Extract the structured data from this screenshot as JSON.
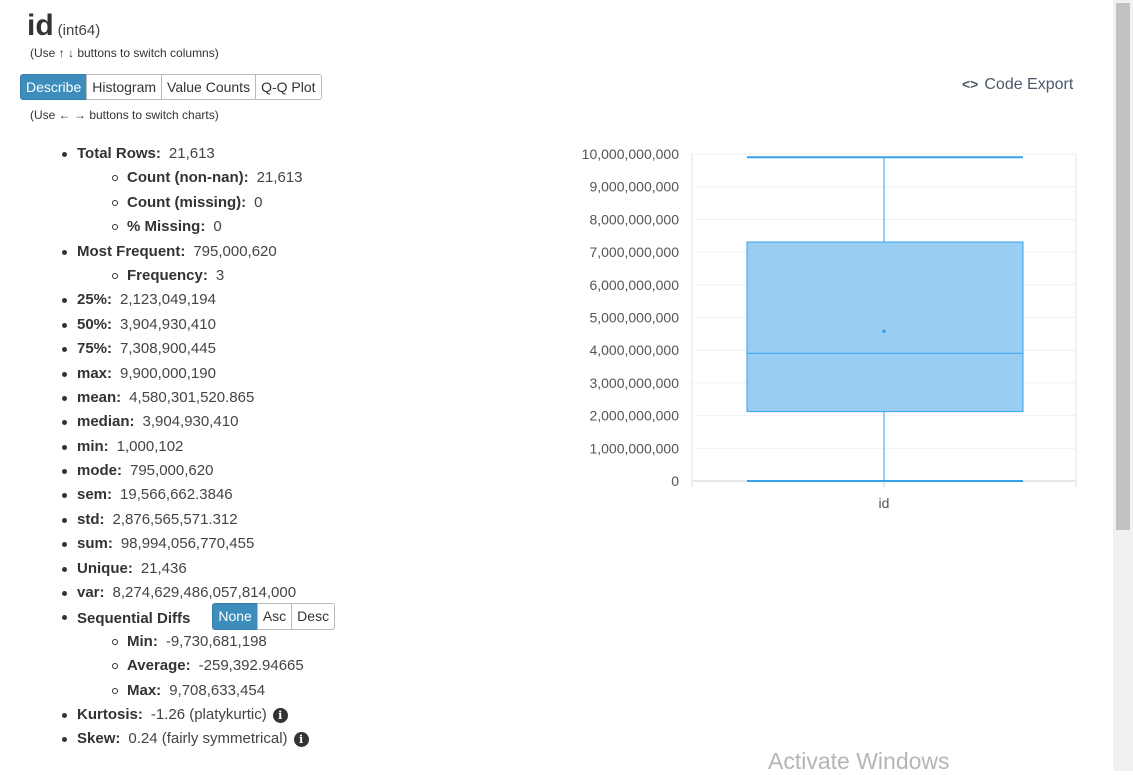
{
  "header": {
    "column_name": "id",
    "dtype": "(int64)",
    "column_hint": "(Use ↑ ↓ buttons to switch columns)"
  },
  "tabs": [
    {
      "label": "Describe",
      "active": true
    },
    {
      "label": "Histogram",
      "active": false
    },
    {
      "label": "Value Counts",
      "active": false
    },
    {
      "label": "Q-Q Plot",
      "active": false
    }
  ],
  "chart_hint": "(Use ← → buttons to switch charts)",
  "code_export": {
    "icon": "code-icon",
    "label": "Code Export",
    "icon_glyph": "<>"
  },
  "stats": {
    "total_rows": {
      "label": "Total Rows:",
      "value": "21,613"
    },
    "count_nonnan": {
      "label": "Count (non-nan):",
      "value": "21,613"
    },
    "count_missing": {
      "label": "Count (missing):",
      "value": "0"
    },
    "pct_missing": {
      "label": "% Missing:",
      "value": "0"
    },
    "most_frequent": {
      "label": "Most Frequent:",
      "value": "795,000,620"
    },
    "frequency": {
      "label": "Frequency:",
      "value": "3"
    },
    "p25": {
      "label": "25%:",
      "value": "2,123,049,194"
    },
    "p50": {
      "label": "50%:",
      "value": "3,904,930,410"
    },
    "p75": {
      "label": "75%:",
      "value": "7,308,900,445"
    },
    "max": {
      "label": "max:",
      "value": "9,900,000,190"
    },
    "mean": {
      "label": "mean:",
      "value": "4,580,301,520.865"
    },
    "median": {
      "label": "median:",
      "value": "3,904,930,410"
    },
    "min": {
      "label": "min:",
      "value": "1,000,102"
    },
    "mode": {
      "label": "mode:",
      "value": "795,000,620"
    },
    "sem": {
      "label": "sem:",
      "value": "19,566,662.3846"
    },
    "std": {
      "label": "std:",
      "value": "2,876,565,571.312"
    },
    "sum": {
      "label": "sum:",
      "value": "98,994,056,770,455"
    },
    "unique": {
      "label": "Unique:",
      "value": "21,436"
    },
    "var": {
      "label": "var:",
      "value": "8,274,629,486,057,814,000"
    },
    "seq_diffs": {
      "label": "Sequential Diffs",
      "buttons": [
        {
          "label": "None",
          "active": true
        },
        {
          "label": "Asc",
          "active": false
        },
        {
          "label": "Desc",
          "active": false
        }
      ],
      "min": {
        "label": "Min:",
        "value": "-9,730,681,198"
      },
      "average": {
        "label": "Average:",
        "value": "-259,392.94665"
      },
      "max": {
        "label": "Max:",
        "value": "9,708,633,454"
      }
    },
    "kurtosis": {
      "label": "Kurtosis:",
      "value": "-1.26 (platykurtic)",
      "icon": "info-icon",
      "icon_glyph": "i"
    },
    "skew": {
      "label": "Skew:",
      "value": "0.24 (fairly symmetrical)",
      "icon": "info-icon",
      "icon_glyph": "i"
    }
  },
  "chart_data": {
    "type": "box",
    "categories": [
      "id"
    ],
    "box": {
      "min": 1000102,
      "q1": 2123049194,
      "median": 3904930410,
      "q3": 7308900445,
      "max": 9900000190,
      "mean": 4580301520.865
    },
    "ylim": [
      0,
      10000000000
    ],
    "yticks": [
      0,
      1000000000,
      2000000000,
      3000000000,
      4000000000,
      5000000000,
      6000000000,
      7000000000,
      8000000000,
      9000000000,
      10000000000
    ],
    "ytick_labels": [
      "0",
      "1,000,000,000",
      "2,000,000,000",
      "3,000,000,000",
      "4,000,000,000",
      "5,000,000,000",
      "6,000,000,000",
      "7,000,000,000",
      "8,000,000,000",
      "9,000,000,000",
      "10,000,000,000"
    ],
    "grid": true,
    "box_fill": "#99cdf2",
    "box_stroke": "#36a2eb"
  },
  "watermark": "Activate Windows"
}
